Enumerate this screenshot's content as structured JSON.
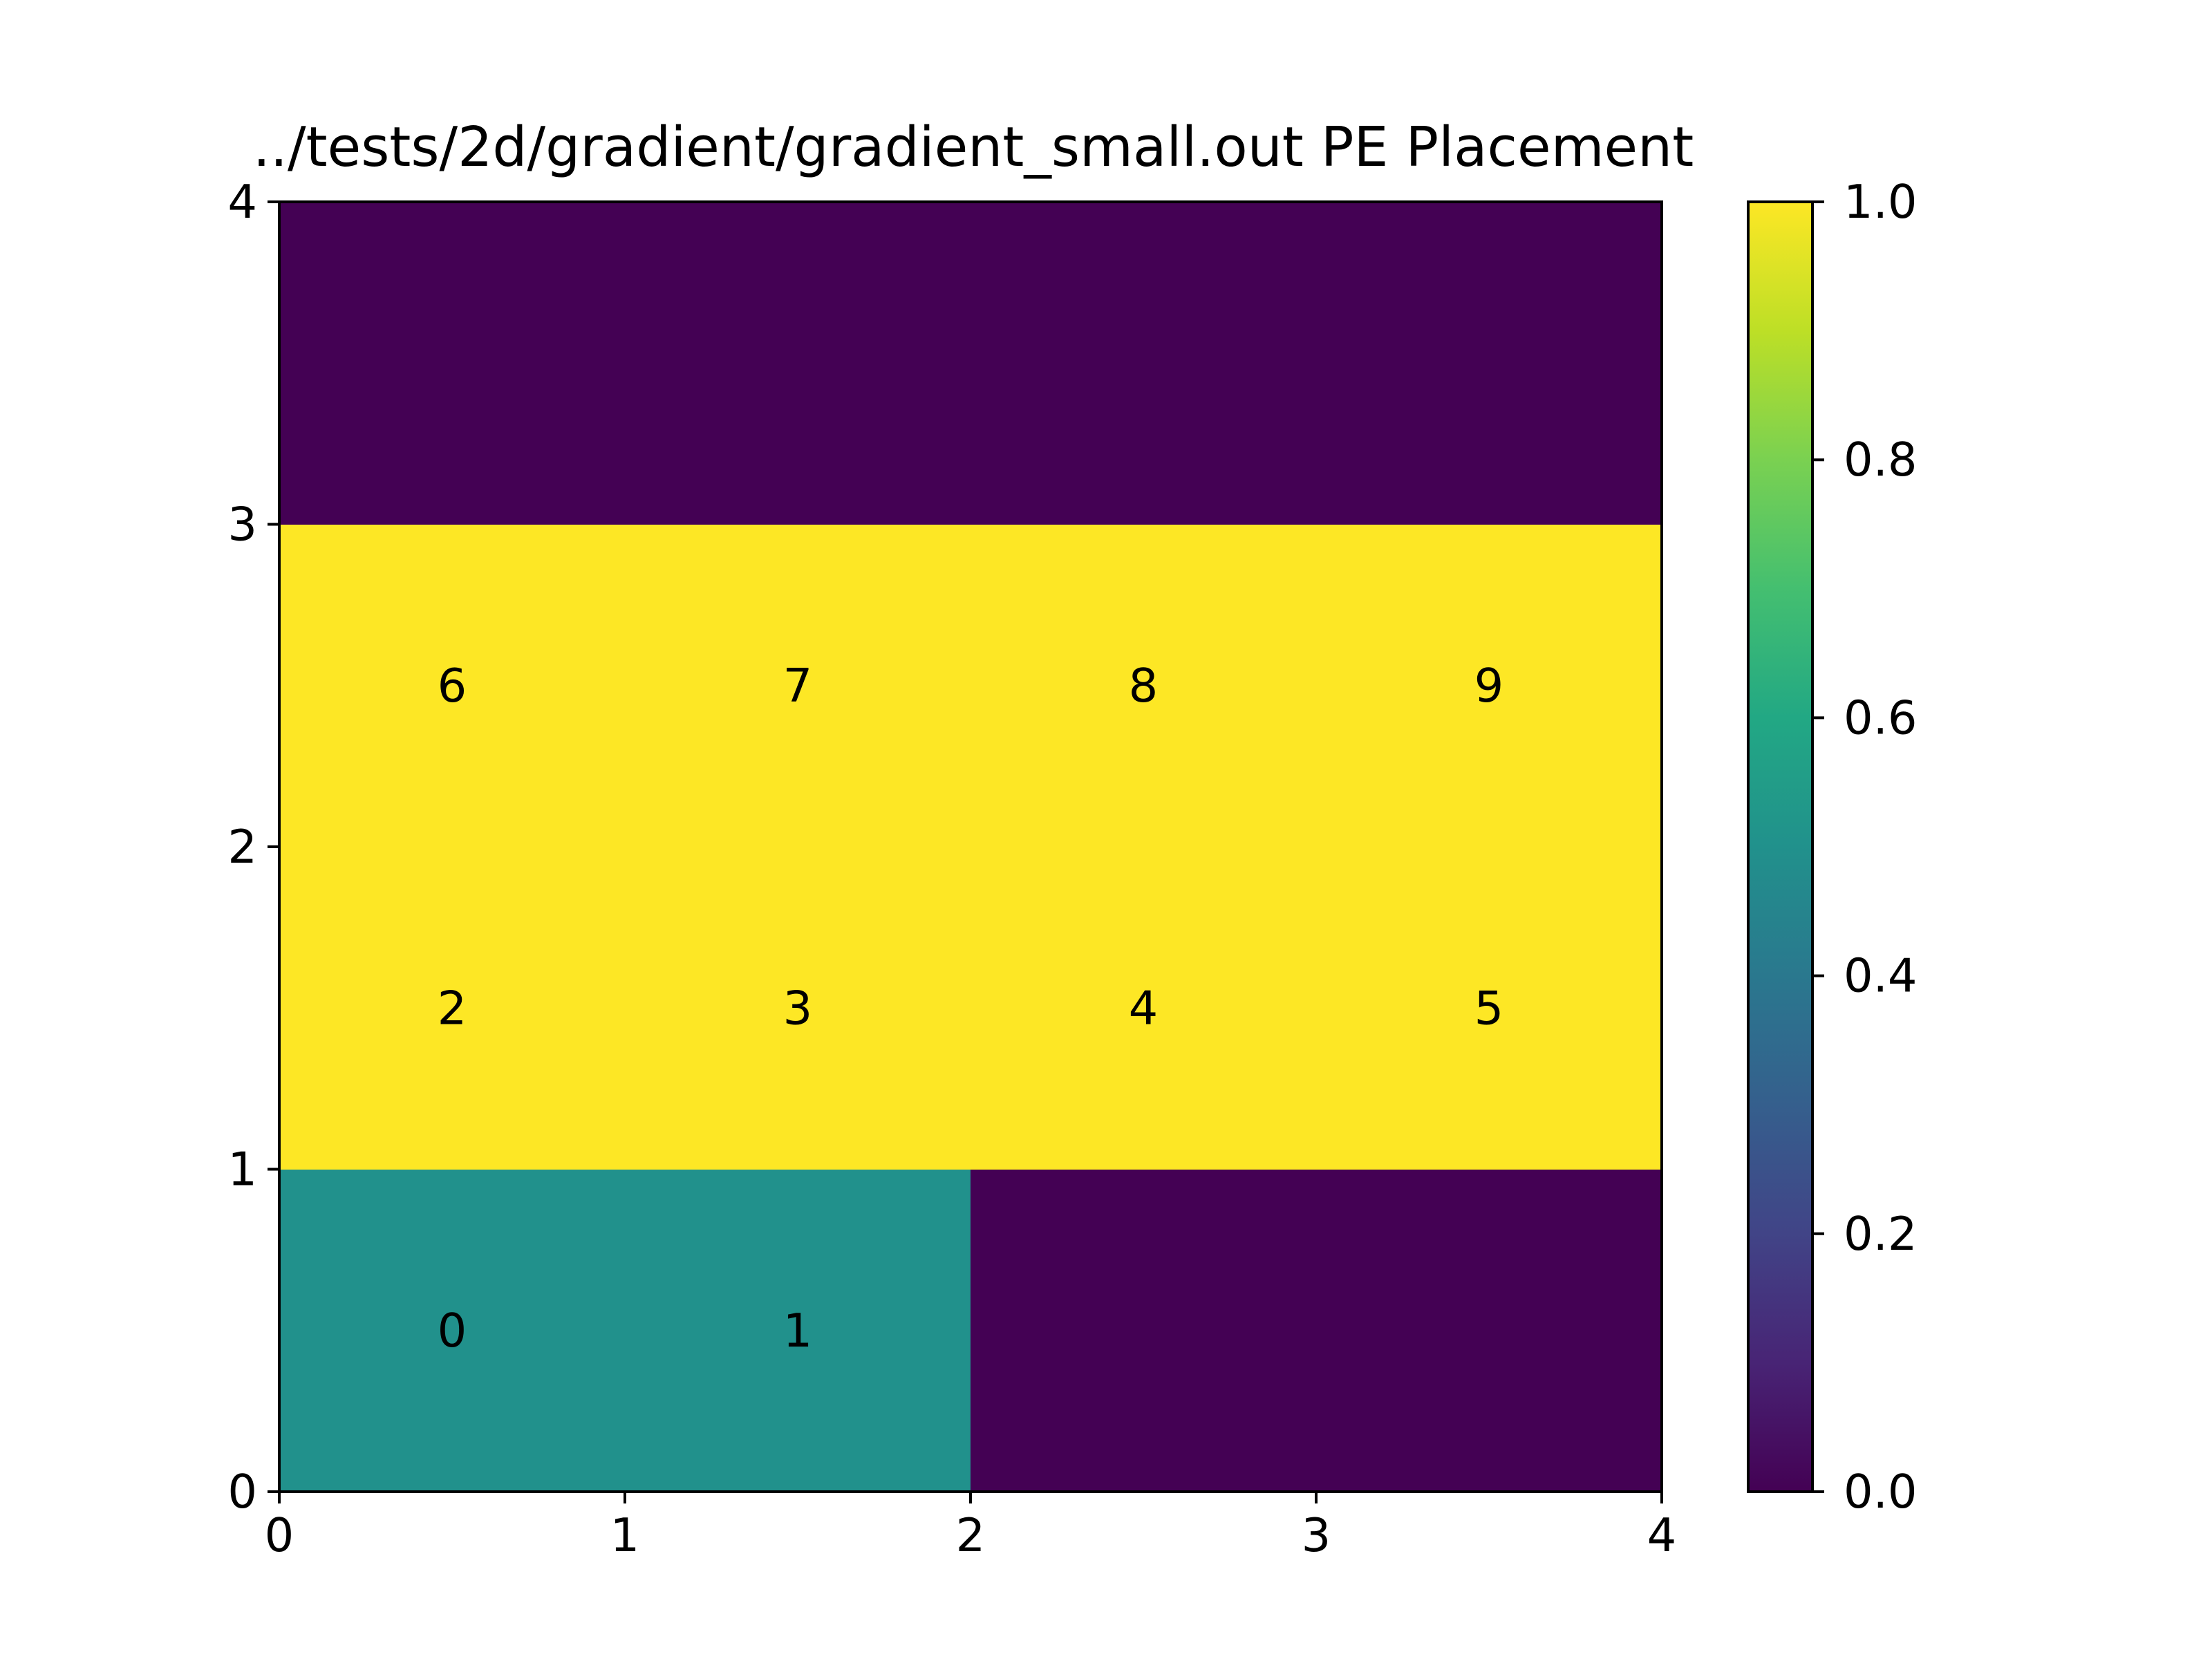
{
  "chart_data": {
    "type": "heatmap",
    "title": "../tests/2d/gradient/gradient_small.out PE Placement",
    "xlabel": "",
    "ylabel": "",
    "xlim": [
      0,
      4
    ],
    "ylim": [
      0,
      4
    ],
    "x_ticks": [
      "0",
      "1",
      "2",
      "3",
      "4"
    ],
    "y_ticks": [
      "0",
      "1",
      "2",
      "3",
      "4"
    ],
    "grid": false,
    "colormap": "viridis",
    "grid_values": [
      [
        0.5,
        0.5,
        0.0,
        0.0
      ],
      [
        1.0,
        1.0,
        1.0,
        1.0
      ],
      [
        1.0,
        1.0,
        1.0,
        1.0
      ],
      [
        0.0,
        0.0,
        0.0,
        0.0
      ]
    ],
    "cell_labels": [
      {
        "x": 0.5,
        "y": 0.5,
        "text": "0"
      },
      {
        "x": 1.5,
        "y": 0.5,
        "text": "1"
      },
      {
        "x": 0.5,
        "y": 1.5,
        "text": "2"
      },
      {
        "x": 1.5,
        "y": 1.5,
        "text": "3"
      },
      {
        "x": 2.5,
        "y": 1.5,
        "text": "4"
      },
      {
        "x": 3.5,
        "y": 1.5,
        "text": "5"
      },
      {
        "x": 0.5,
        "y": 2.5,
        "text": "6"
      },
      {
        "x": 1.5,
        "y": 2.5,
        "text": "7"
      },
      {
        "x": 2.5,
        "y": 2.5,
        "text": "8"
      },
      {
        "x": 3.5,
        "y": 2.5,
        "text": "9"
      }
    ],
    "colorbar": {
      "range": [
        0.0,
        1.0
      ],
      "ticks": [
        "0.0",
        "0.2",
        "0.4",
        "0.6",
        "0.8",
        "1.0"
      ],
      "colors": {
        "0.0": "#440154",
        "0.5": "#21918c",
        "1.0": "#fde725"
      }
    }
  }
}
